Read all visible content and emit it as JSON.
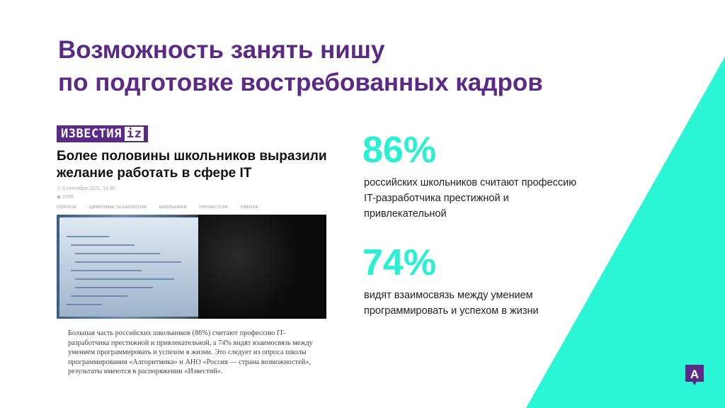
{
  "slide": {
    "title_line1": "Возможность занять нишу",
    "title_line2": "по подготовке востребованных кадров",
    "colors": {
      "purple": "#5b2a86",
      "teal": "#2af5d5"
    }
  },
  "article": {
    "source_logo": "ИЗВЕСТИЯ",
    "source_logo_mark": "iz",
    "headline": "Более половины школьников выразили желание работать в сфере IT",
    "date": "6 сентября 2021, 14:30",
    "views": "2356",
    "tags": [
      "ОПРОСЫ",
      "ЦИФРОВЫЕ ТЕХНОЛОГИИ",
      "ШКОЛЬНИКИ",
      "ПРОФЕССИИ",
      "РАБОТА"
    ],
    "body": "Большая часть российских школьников (86%) считают профессию IT-разработчика престижной и привлекательной, а 74% видят взаимосвязь между умением программировать и успехом в жизни. Это следует из опроса школы программирования «Алгоритмика» и АНО «Россия — страна возможностей», результаты имеются в распоряжении «Известий»."
  },
  "stats": [
    {
      "value": "86%",
      "text": "российских школьников считают профессию IT-разработчика престижной и привлекательной"
    },
    {
      "value": "74%",
      "text": "видят взаимосвязь между умением программировать и успехом в жизни"
    }
  ],
  "brand_badge": "A"
}
